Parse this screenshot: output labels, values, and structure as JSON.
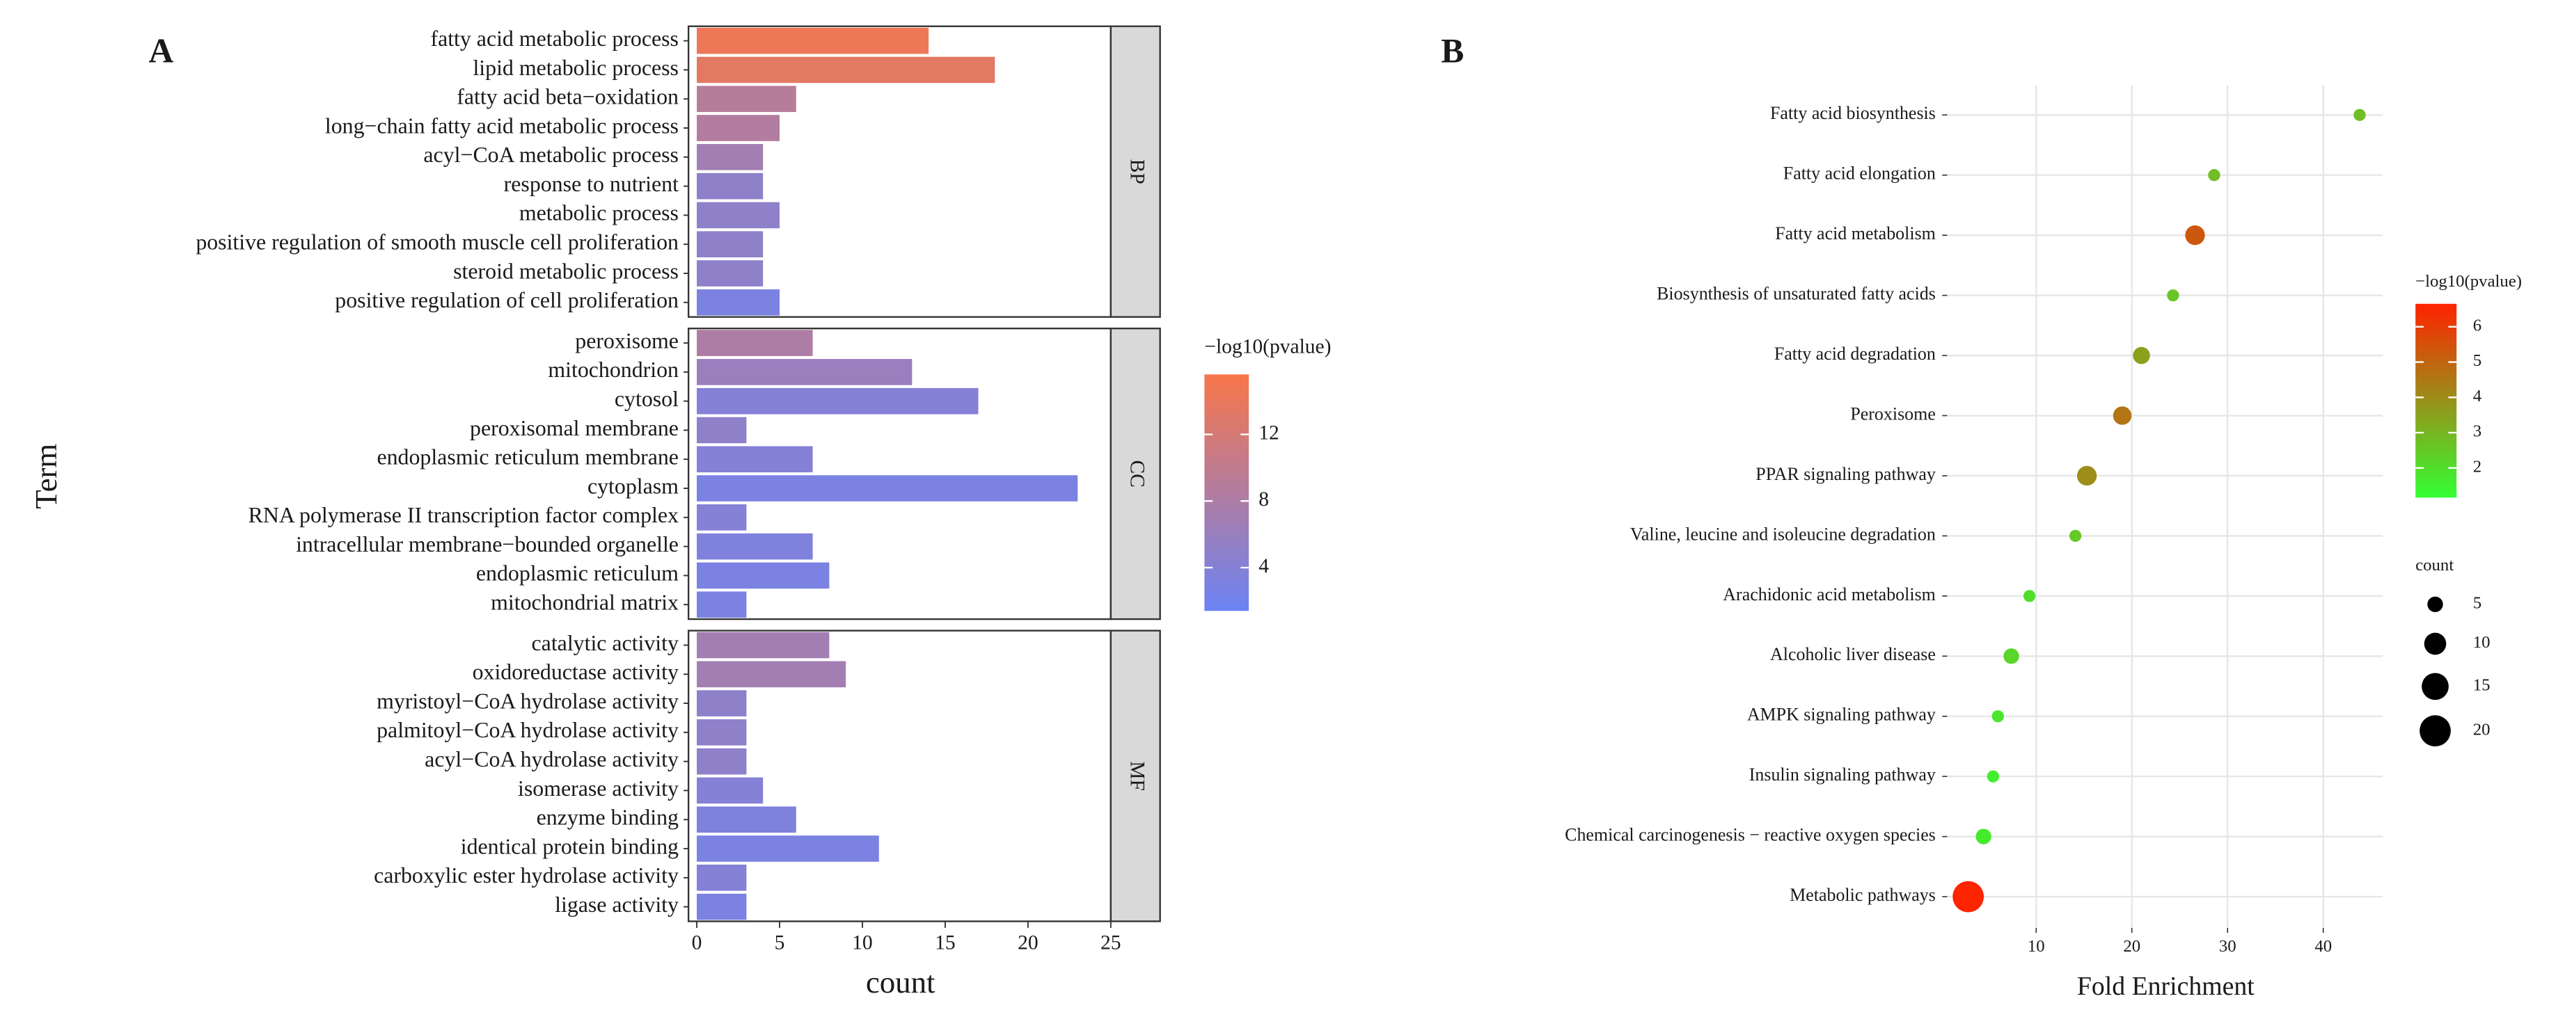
{
  "chart_data": [
    {
      "type": "bar",
      "panel_label": "A",
      "y_label": "Term",
      "x_label": "count",
      "facets": [
        {
          "name": "BP",
          "categories": [
            "fatty acid metabolic process",
            "lipid metabolic process",
            "fatty acid beta−oxidation",
            "long−chain fatty acid metabolic process",
            "acyl−CoA metabolic process",
            "response to nutrient",
            "metabolic process",
            "positive regulation of smooth muscle cell proliferation",
            "steroid metabolic process",
            "positive regulation of cell proliferation"
          ],
          "values": [
            14,
            18,
            6,
            5,
            4,
            4,
            5,
            4,
            4,
            5
          ],
          "color_values": [
            14.5,
            13.5,
            9,
            8.5,
            7,
            5,
            5,
            5,
            5,
            3
          ]
        },
        {
          "name": "CC",
          "categories": [
            "peroxisome",
            "mitochondrion",
            "cytosol",
            "peroxisomal membrane",
            "endoplasmic reticulum membrane",
            "cytoplasm",
            "RNA polymerase II transcription factor complex",
            "intracellular membrane−bounded organelle",
            "endoplasmic reticulum",
            "mitochondrial matrix"
          ],
          "values": [
            7,
            13,
            17,
            3,
            7,
            23,
            3,
            7,
            8,
            3
          ],
          "color_values": [
            8,
            6,
            4,
            5,
            4,
            3,
            4,
            3.5,
            3,
            3
          ]
        },
        {
          "name": "MF",
          "categories": [
            "catalytic activity",
            "oxidoreductase activity",
            "myristoyl−CoA hydrolase activity",
            "palmitoyl−CoA hydrolase activity",
            "acyl−CoA hydrolase activity",
            "isomerase activity",
            "enzyme binding",
            "identical protein binding",
            "carboxylic ester hydrolase activity",
            "ligase activity"
          ],
          "values": [
            8,
            9,
            3,
            3,
            3,
            4,
            6,
            11,
            3,
            3
          ],
          "color_values": [
            7,
            7,
            5,
            5,
            5,
            4,
            3.5,
            3,
            4,
            3
          ]
        }
      ],
      "xlim": [
        -0.5,
        25
      ],
      "xticks": [
        0,
        5,
        10,
        15,
        20,
        25
      ],
      "color_scale": {
        "title": "−log10(pvalue)",
        "lim": [
          1.4,
          15.6
        ],
        "ticks": [
          4,
          8,
          12
        ],
        "colors": [
          "#6b83f5",
          "#f8764a"
        ]
      }
    },
    {
      "type": "scatter",
      "panel_label": "B",
      "x_label": "Fold Enrichment",
      "categories": [
        "Fatty acid biosynthesis",
        "Fatty acid elongation",
        "Fatty acid metabolism",
        "Biosynthesis of unsaturated fatty acids",
        "Fatty acid degradation",
        "Peroxisome",
        "PPAR signaling pathway",
        "Valine, leucine and isoleucine degradation",
        "Arachidonic acid metabolism",
        "Alcoholic liver disease",
        "AMPK signaling pathway",
        "Insulin signaling pathway",
        "Chemical carcinogenesis − reactive oxygen species",
        "Metabolic pathways"
      ],
      "x": [
        43.8,
        28.6,
        26.6,
        24.3,
        21.0,
        19.0,
        15.3,
        14.1,
        9.3,
        7.4,
        6.0,
        5.5,
        4.5,
        2.9
      ],
      "sizes": [
        3,
        3,
        8,
        3,
        6,
        7,
        8,
        3,
        3,
        5,
        3,
        3,
        5,
        20
      ],
      "color_values": [
        2.8,
        2.8,
        5.3,
        2.6,
        3.5,
        4.6,
        4.0,
        2.5,
        2.0,
        2.2,
        1.8,
        1.6,
        1.7,
        6.6
      ],
      "xlim": [
        0.7,
        46.2
      ],
      "xticks": [
        10,
        20,
        30,
        40
      ],
      "grid": true,
      "color_scale": {
        "title": "−log10(pvalue)",
        "lim": [
          1.16,
          6.65
        ],
        "ticks": [
          2,
          3,
          4,
          5,
          6
        ],
        "colors": [
          "#33ff33",
          "#ff2200"
        ]
      },
      "size_legend": {
        "title": "count",
        "values": [
          5,
          10,
          15,
          20
        ]
      }
    }
  ]
}
